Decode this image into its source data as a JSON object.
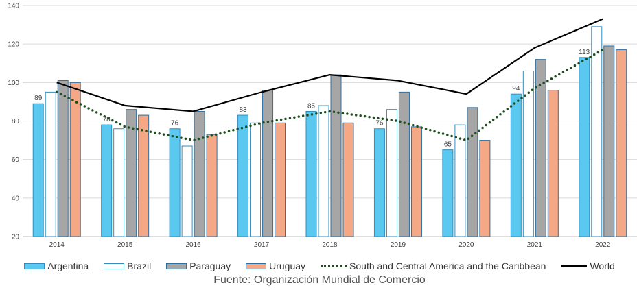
{
  "chart_data": {
    "type": "bar",
    "categories": [
      "2014",
      "2015",
      "2016",
      "2017",
      "2018",
      "2019",
      "2020",
      "2021",
      "2022"
    ],
    "series": [
      {
        "name": "Argentina",
        "kind": "bar",
        "color": "#5BC8F0",
        "stroke": "#2F8FC0",
        "values": [
          89,
          78,
          76,
          83,
          85,
          76,
          65,
          94,
          113
        ],
        "labels": [
          "89",
          "78",
          "76",
          "83",
          "85",
          "76",
          "65",
          "94",
          "113"
        ]
      },
      {
        "name": "Brazil",
        "kind": "bar",
        "color": "#FFFFFF",
        "stroke": "#2F8FC0",
        "values": [
          95,
          76,
          67,
          79,
          88,
          86,
          78,
          106,
          129
        ]
      },
      {
        "name": "Paraguay",
        "kind": "bar",
        "color": "#A6A6A6",
        "stroke": "#2F6FA0",
        "values": [
          101,
          86,
          85,
          96,
          104,
          95,
          87,
          112,
          119
        ]
      },
      {
        "name": "Uruguay",
        "kind": "bar",
        "color": "#F4A886",
        "stroke": "#2F6FA0",
        "values": [
          100,
          83,
          73,
          79,
          79,
          77,
          70,
          96,
          117
        ]
      },
      {
        "name": "South and Central America and the Caribbean",
        "kind": "line",
        "style": "dotted",
        "color": "#1E4D1E",
        "values": [
          95,
          77,
          70,
          79,
          85,
          80,
          70,
          97,
          117
        ]
      },
      {
        "name": "World",
        "kind": "line",
        "style": "solid",
        "color": "#000000",
        "values": [
          100,
          88,
          85,
          95,
          104,
          101,
          94,
          118,
          133
        ]
      }
    ],
    "y_ticks": [
      "20",
      "40",
      "60",
      "80",
      "100",
      "120",
      "140"
    ],
    "ylim": [
      20,
      140
    ],
    "grid": true,
    "legend_position": "bottom"
  },
  "source_text": "Fuente: Organización Mundial de Comercio"
}
